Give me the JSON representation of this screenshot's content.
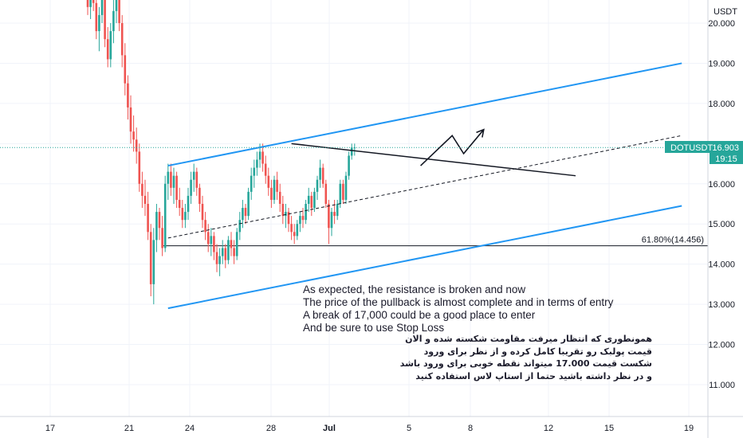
{
  "chart_data": {
    "type": "candlestick",
    "symbol": "DOTUSDT",
    "currency": "USDT",
    "last_price": "16.903",
    "countdown": "19:15",
    "ylim": [
      10.2,
      21.0
    ],
    "y_ticks": [
      "11.000",
      "12.000",
      "13.000",
      "14.000",
      "15.000",
      "16.000",
      "17.000",
      "18.000",
      "19.000",
      "20.000"
    ],
    "x_ticks": [
      "17",
      "21",
      "24",
      "28",
      "Jul",
      "5",
      "8",
      "12",
      "15",
      "19"
    ],
    "fib_label": "61.80%(14.456)",
    "fib_level": 14.456,
    "colors": {
      "up": "#26a69a",
      "down": "#ef5350",
      "channel": "#2196f3",
      "price_tag": "#26a69a",
      "line": "#131722"
    },
    "candles": [
      {
        "o": 20.6,
        "h": 21.0,
        "l": 20.2,
        "c": 20.4
      },
      {
        "o": 20.4,
        "h": 21.0,
        "l": 20.1,
        "c": 20.9
      },
      {
        "o": 20.9,
        "h": 21.0,
        "l": 20.3,
        "c": 20.5
      },
      {
        "o": 20.5,
        "h": 20.9,
        "l": 19.6,
        "c": 19.8
      },
      {
        "o": 19.8,
        "h": 20.4,
        "l": 19.3,
        "c": 20.2
      },
      {
        "o": 20.2,
        "h": 21.0,
        "l": 20.0,
        "c": 20.8
      },
      {
        "o": 20.8,
        "h": 21.0,
        "l": 19.4,
        "c": 19.6
      },
      {
        "o": 19.6,
        "h": 19.9,
        "l": 18.9,
        "c": 19.1
      },
      {
        "o": 19.1,
        "h": 20.0,
        "l": 18.9,
        "c": 19.8
      },
      {
        "o": 19.8,
        "h": 20.6,
        "l": 19.5,
        "c": 20.3
      },
      {
        "o": 20.3,
        "h": 21.0,
        "l": 20.0,
        "c": 20.7
      },
      {
        "o": 20.7,
        "h": 21.0,
        "l": 19.8,
        "c": 20.0
      },
      {
        "o": 20.0,
        "h": 20.2,
        "l": 18.9,
        "c": 19.2
      },
      {
        "o": 19.2,
        "h": 19.5,
        "l": 18.2,
        "c": 18.5
      },
      {
        "o": 18.5,
        "h": 18.7,
        "l": 17.6,
        "c": 17.9
      },
      {
        "o": 17.9,
        "h": 18.2,
        "l": 17.0,
        "c": 17.3
      },
      {
        "o": 17.3,
        "h": 17.7,
        "l": 16.8,
        "c": 17.1
      },
      {
        "o": 17.1,
        "h": 17.4,
        "l": 16.5,
        "c": 16.8
      },
      {
        "o": 16.8,
        "h": 17.0,
        "l": 15.8,
        "c": 16.0
      },
      {
        "o": 16.0,
        "h": 16.3,
        "l": 15.4,
        "c": 15.7
      },
      {
        "o": 15.7,
        "h": 16.1,
        "l": 15.2,
        "c": 15.5
      },
      {
        "o": 15.5,
        "h": 15.8,
        "l": 14.6,
        "c": 14.8
      },
      {
        "o": 14.8,
        "h": 15.0,
        "l": 13.2,
        "c": 13.5
      },
      {
        "o": 13.5,
        "h": 14.9,
        "l": 13.0,
        "c": 14.6
      },
      {
        "o": 14.6,
        "h": 15.5,
        "l": 14.3,
        "c": 15.3
      },
      {
        "o": 15.3,
        "h": 15.4,
        "l": 14.6,
        "c": 14.9
      },
      {
        "o": 14.9,
        "h": 15.2,
        "l": 14.2,
        "c": 14.4
      },
      {
        "o": 14.4,
        "h": 16.2,
        "l": 14.3,
        "c": 16.0
      },
      {
        "o": 16.0,
        "h": 16.5,
        "l": 15.6,
        "c": 16.3
      },
      {
        "o": 16.3,
        "h": 16.5,
        "l": 15.7,
        "c": 15.9
      },
      {
        "o": 15.9,
        "h": 16.4,
        "l": 15.5,
        "c": 16.2
      },
      {
        "o": 16.2,
        "h": 16.3,
        "l": 15.4,
        "c": 15.6
      },
      {
        "o": 15.6,
        "h": 15.9,
        "l": 15.2,
        "c": 15.4
      },
      {
        "o": 15.4,
        "h": 15.6,
        "l": 14.9,
        "c": 15.1
      },
      {
        "o": 15.1,
        "h": 15.5,
        "l": 14.9,
        "c": 15.3
      },
      {
        "o": 15.3,
        "h": 15.9,
        "l": 15.1,
        "c": 15.7
      },
      {
        "o": 15.7,
        "h": 16.3,
        "l": 15.5,
        "c": 16.1
      },
      {
        "o": 16.1,
        "h": 16.5,
        "l": 15.8,
        "c": 16.3
      },
      {
        "o": 16.3,
        "h": 16.4,
        "l": 15.7,
        "c": 15.9
      },
      {
        "o": 15.9,
        "h": 16.0,
        "l": 15.3,
        "c": 15.5
      },
      {
        "o": 15.5,
        "h": 15.7,
        "l": 14.9,
        "c": 15.1
      },
      {
        "o": 15.1,
        "h": 15.3,
        "l": 14.6,
        "c": 14.8
      },
      {
        "o": 14.8,
        "h": 15.0,
        "l": 14.3,
        "c": 14.5
      },
      {
        "o": 14.5,
        "h": 14.9,
        "l": 14.2,
        "c": 14.7
      },
      {
        "o": 14.7,
        "h": 14.8,
        "l": 14.1,
        "c": 14.3
      },
      {
        "o": 14.3,
        "h": 14.5,
        "l": 13.8,
        "c": 14.0
      },
      {
        "o": 14.0,
        "h": 14.4,
        "l": 13.7,
        "c": 14.2
      },
      {
        "o": 14.2,
        "h": 14.6,
        "l": 14.0,
        "c": 14.4
      },
      {
        "o": 14.4,
        "h": 14.5,
        "l": 13.9,
        "c": 14.1
      },
      {
        "o": 14.1,
        "h": 14.7,
        "l": 14.0,
        "c": 14.6
      },
      {
        "o": 14.6,
        "h": 14.8,
        "l": 14.2,
        "c": 14.4
      },
      {
        "o": 14.4,
        "h": 14.6,
        "l": 14.0,
        "c": 14.2
      },
      {
        "o": 14.2,
        "h": 14.9,
        "l": 14.1,
        "c": 14.8
      },
      {
        "o": 14.8,
        "h": 15.3,
        "l": 14.6,
        "c": 15.1
      },
      {
        "o": 15.1,
        "h": 15.6,
        "l": 14.9,
        "c": 15.4
      },
      {
        "o": 15.4,
        "h": 15.5,
        "l": 15.0,
        "c": 15.2
      },
      {
        "o": 15.2,
        "h": 15.9,
        "l": 15.1,
        "c": 15.8
      },
      {
        "o": 15.8,
        "h": 16.4,
        "l": 15.6,
        "c": 16.2
      },
      {
        "o": 16.2,
        "h": 16.6,
        "l": 15.9,
        "c": 16.4
      },
      {
        "o": 16.4,
        "h": 16.8,
        "l": 16.2,
        "c": 16.6
      },
      {
        "o": 16.6,
        "h": 17.0,
        "l": 16.4,
        "c": 16.8
      },
      {
        "o": 16.8,
        "h": 17.0,
        "l": 16.3,
        "c": 16.5
      },
      {
        "o": 16.5,
        "h": 16.7,
        "l": 16.0,
        "c": 16.2
      },
      {
        "o": 16.2,
        "h": 16.4,
        "l": 15.7,
        "c": 15.9
      },
      {
        "o": 15.9,
        "h": 16.1,
        "l": 15.4,
        "c": 15.6
      },
      {
        "o": 15.6,
        "h": 16.2,
        "l": 15.5,
        "c": 16.1
      },
      {
        "o": 16.1,
        "h": 16.3,
        "l": 15.6,
        "c": 15.8
      },
      {
        "o": 15.8,
        "h": 16.0,
        "l": 15.3,
        "c": 15.5
      },
      {
        "o": 15.5,
        "h": 15.7,
        "l": 15.0,
        "c": 15.2
      },
      {
        "o": 15.2,
        "h": 15.5,
        "l": 14.9,
        "c": 15.3
      },
      {
        "o": 15.3,
        "h": 15.4,
        "l": 14.8,
        "c": 15.0
      },
      {
        "o": 15.0,
        "h": 15.2,
        "l": 14.6,
        "c": 14.8
      },
      {
        "o": 14.8,
        "h": 15.0,
        "l": 14.5,
        "c": 14.7
      },
      {
        "o": 14.7,
        "h": 15.1,
        "l": 14.6,
        "c": 15.0
      },
      {
        "o": 15.0,
        "h": 15.3,
        "l": 14.8,
        "c": 15.2
      },
      {
        "o": 15.2,
        "h": 15.4,
        "l": 14.9,
        "c": 15.1
      },
      {
        "o": 15.1,
        "h": 15.6,
        "l": 15.0,
        "c": 15.5
      },
      {
        "o": 15.5,
        "h": 15.9,
        "l": 15.3,
        "c": 15.7
      },
      {
        "o": 15.7,
        "h": 15.8,
        "l": 15.2,
        "c": 15.4
      },
      {
        "o": 15.4,
        "h": 15.9,
        "l": 15.3,
        "c": 15.8
      },
      {
        "o": 15.8,
        "h": 16.2,
        "l": 15.6,
        "c": 16.1
      },
      {
        "o": 16.1,
        "h": 16.6,
        "l": 15.9,
        "c": 16.4
      },
      {
        "o": 16.4,
        "h": 16.5,
        "l": 15.9,
        "c": 16.0
      },
      {
        "o": 16.0,
        "h": 16.1,
        "l": 15.4,
        "c": 15.5
      },
      {
        "o": 15.5,
        "h": 15.6,
        "l": 14.5,
        "c": 14.9
      },
      {
        "o": 14.9,
        "h": 15.4,
        "l": 14.7,
        "c": 15.3
      },
      {
        "o": 15.3,
        "h": 15.6,
        "l": 15.0,
        "c": 15.2
      },
      {
        "o": 15.2,
        "h": 15.6,
        "l": 15.1,
        "c": 15.5
      },
      {
        "o": 15.5,
        "h": 16.1,
        "l": 15.4,
        "c": 16.0
      },
      {
        "o": 16.0,
        "h": 16.1,
        "l": 15.5,
        "c": 15.6
      },
      {
        "o": 15.6,
        "h": 16.3,
        "l": 15.5,
        "c": 16.2
      },
      {
        "o": 16.2,
        "h": 16.8,
        "l": 16.1,
        "c": 16.7
      },
      {
        "o": 16.7,
        "h": 17.0,
        "l": 16.6,
        "c": 16.9
      },
      {
        "o": 16.9,
        "h": 17.0,
        "l": 16.7,
        "c": 16.903
      }
    ],
    "lines": [
      {
        "name": "channel-upper",
        "x0": 28,
        "y0": 16.45,
        "x1": 207,
        "y1": 19.0
      },
      {
        "name": "channel-lower",
        "x0": 28,
        "y0": 12.9,
        "x1": 207,
        "y1": 15.45
      },
      {
        "name": "channel-mid",
        "x0": 28,
        "y0": 14.65,
        "x1": 207,
        "y1": 17.2
      },
      {
        "name": "resistance",
        "x0": 71,
        "y0": 17.0,
        "x1": 170,
        "y1": 16.2
      }
    ],
    "projection": [
      [
        116,
        16.45
      ],
      [
        127,
        17.2
      ],
      [
        131,
        16.75
      ],
      [
        138,
        17.35
      ]
    ]
  },
  "annotation_en": [
    "As expected, the resistance is broken and now",
    "The price of the pullback is almost complete and in terms of entry",
    "A break of 17,000 could be a good place to enter",
    "And be sure to use Stop Loss"
  ],
  "annotation_fa": [
    "همونطوری که انتظار میرفت مقاومت شکسته شده و الان",
    "قیمت پولبک رو تقریبا کامل کرده و از نظر برای ورود",
    "شکست قیمت 17.000 میتواند نقطه خوبی برای ورود باشد",
    "و در نظر داشته باشید حتما از استاپ لاس استفاده کنید"
  ]
}
